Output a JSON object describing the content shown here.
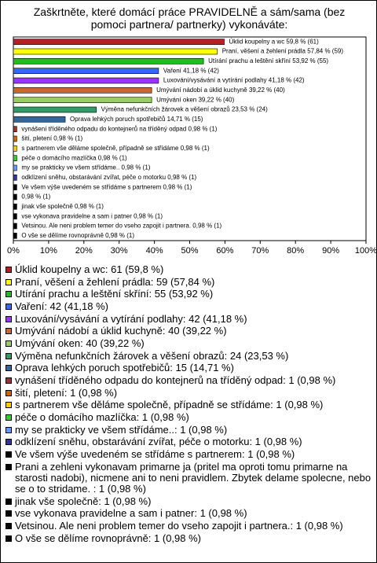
{
  "chart_data": {
    "type": "bar",
    "title": "Zaškrtněte, které domácí práce PRAVIDELNĚ a sám/sama (bez pomoci partnera/ partnerky) vykonáváte:",
    "categories": [
      "Úklid koupelny a wc 59,8 % (61)",
      "Praní, věšení a žehlení prádla 57,84 % (59)",
      "Utírání prachu a leštění skříní 53,92 % (55)",
      "Vaření 41,18 % (42)",
      "Luxování/vysávání a vytírání podlahy 41,18 % (42)",
      "Umývání nádobí a úklid kuchyně 39,22 % (40)",
      "Umývání oken 39,22 % (40)",
      "Výměna nefunkčních žárovek a věšení obrazů 23,53 % (24)",
      "Oprava lehkých poruch spotřebičů 14,71 % (15)",
      "vynášení tříděného odpadu do kontejnerů na tříděný odpad 0,98 % (1)",
      "šití, pletení 0,98 % (1)",
      "s partnerem vše děláme společně, případně se střídáme 0,98 % (1)",
      "péče o domácího mazlíčka 0,98 % (1)",
      "my se prakticky ve všem střídáme.. 0,98 % (1)",
      "odklízení sněhu, obstarávání zvířat, péče o motorku 0,98 % (1)",
      "Ve všem výše uvedeném se střídáme s partnerem 0,98 % (1)",
      "0,98 % (1)",
      "jinak vše společně 0,98 % (1)",
      "vse vykonava pravidelne a sam i patner 0,98 % (1)",
      "Vetsinou. Ale neni problem temer do vseho zapojit i partnera. 0,98 % (1)",
      "O vše se dělíme rovnoprávně 0,98 % (1)"
    ],
    "values": [
      59.8,
      57.84,
      53.92,
      41.18,
      41.18,
      39.22,
      39.22,
      23.53,
      14.71,
      0.98,
      0.98,
      0.98,
      0.98,
      0.98,
      0.98,
      0.98,
      0.98,
      0.98,
      0.98,
      0.98,
      0.98
    ],
    "colors": [
      "#b22222",
      "#ffff00",
      "#22bb22",
      "#3366ff",
      "#9933ff",
      "#cc6633",
      "#99cc66",
      "#339966",
      "#336699",
      "#993333",
      "#cc6600",
      "#ffcc00",
      "#33cc33",
      "#6699ff",
      "#333399",
      "#000000",
      "#000000",
      "#000000",
      "#000000",
      "#000000",
      "#000000"
    ],
    "legend_labels": [
      "Úklid koupelny a wc: 61 (59,8 %)",
      "Praní, věšení a žehlení prádla: 59 (57,84 %)",
      "Utírání prachu a leštění skříní: 55 (53,92 %)",
      "Vaření: 42 (41,18 %)",
      "Luxování/vysávání a vytírání podlahy: 42 (41,18 %)",
      "Umývání nádobí a úklid kuchyně: 40 (39,22 %)",
      "Umývání oken: 40 (39,22 %)",
      "Výměna nefunkčních žárovek a věšení obrazů: 24 (23,53 %)",
      "Oprava lehkých poruch spotřebičů: 15 (14,71 %)",
      "vynášení tříděného odpadu do kontejnerů na tříděný odpad: 1 (0,98 %)",
      "šití, pletení: 1 (0,98 %)",
      "s partnerem vše děláme společně, případně se střídáme: 1 (0,98 %)",
      "péče o domácího mazlíčka: 1 (0,98 %)",
      "my se prakticky ve všem střídáme..: 1 (0,98 %)",
      "odklízení sněhu, obstarávání zvířat, péče o motorku: 1 (0,98 %)",
      "Ve všem výše uvedeném se střídáme s partnerem: 1 (0,98 %)",
      "Prani a zehleni vykonavam primarne ja (pritel ma oproti tomu primarne na starosti nadobi), nicmene ani to neni pravidlem. Zbytek delame spolecne, nebo se o to stridame. : 1 (0,98 %)",
      "jinak vše společně: 1 (0,98 %)",
      "vse vykonava pravidelne a sam i patner: 1 (0,98 %)",
      "Vetsinou. Ale neni problem temer do vseho zapojit i partnera.: 1 (0,98 %)",
      "O vše se dělíme rovnoprávně: 1 (0,98 %)"
    ],
    "xlim": [
      0,
      100
    ],
    "xticks": [
      {
        "value": 0,
        "label": "0%"
      },
      {
        "value": 10,
        "label": "10%"
      },
      {
        "value": 20,
        "label": "20%"
      },
      {
        "value": 30,
        "label": "30%"
      },
      {
        "value": 40,
        "label": "40%"
      },
      {
        "value": 50,
        "label": "50%"
      },
      {
        "value": 60,
        "label": "60%"
      },
      {
        "value": 70,
        "label": "70%"
      },
      {
        "value": 80,
        "label": "80%"
      },
      {
        "value": 90,
        "label": "90%"
      },
      {
        "value": 100,
        "label": "100%"
      }
    ]
  }
}
